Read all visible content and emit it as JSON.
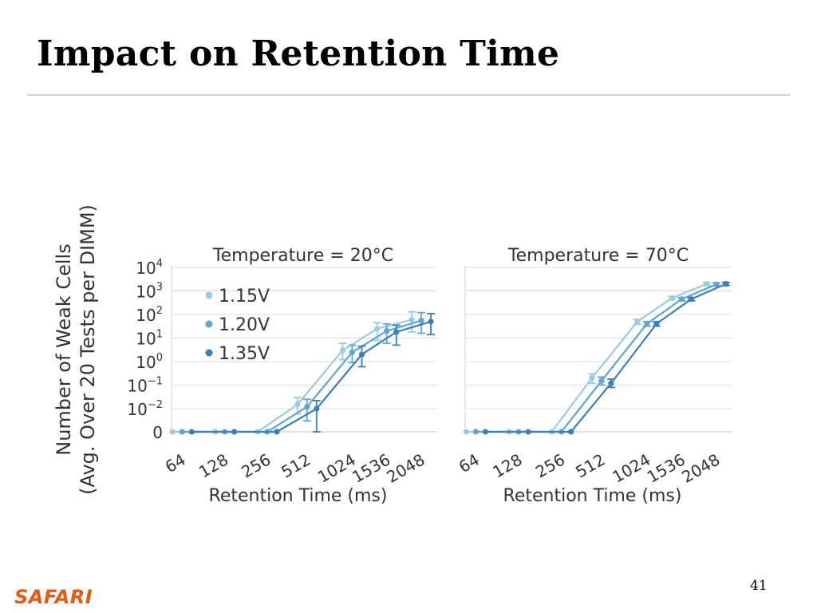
{
  "slide": {
    "title": "Impact on Retention Time",
    "page_number": "41",
    "logo_text": "SAFARI"
  },
  "colors": {
    "1.15V": "#9ecae1",
    "1.20V": "#5fa6cf",
    "1.35V": "#3a7fba",
    "grid": "#dcdcdc",
    "text": "#333333"
  },
  "chart_data": [
    {
      "type": "line",
      "title": "Temperature = 20°C",
      "xlabel": "Retention Time (ms)",
      "ylabel_lines": [
        "Number of Weak Cells",
        "(Avg. Over 20 Tests per DIMM)"
      ],
      "categories": [
        "64",
        "128",
        "256",
        "512",
        "1024",
        "1536",
        "2048"
      ],
      "y_scale": "log-with-zero",
      "y_ticks": [
        "0",
        "10^-2",
        "10^-1",
        "10^0",
        "10^1",
        "10^2",
        "10^3",
        "10^4"
      ],
      "legend": "top-left",
      "grid": true,
      "series": [
        {
          "name": "1.15V",
          "values": [
            0,
            0,
            0,
            0.015,
            3,
            25,
            60
          ],
          "err_low": [
            0,
            0,
            0,
            0.006,
            1.2,
            8,
            18
          ],
          "err_high": [
            0,
            0,
            0,
            0.03,
            6,
            45,
            130
          ]
        },
        {
          "name": "1.20V",
          "values": [
            0,
            0,
            0,
            0.012,
            2.5,
            20,
            55
          ],
          "err_low": [
            0,
            0,
            0,
            0.003,
            0.9,
            6,
            16
          ],
          "err_high": [
            0,
            0,
            0,
            0.025,
            5,
            40,
            120
          ]
        },
        {
          "name": "1.35V",
          "values": [
            0,
            0,
            0,
            0.01,
            2,
            18,
            50
          ],
          "err_low": [
            0,
            0,
            0,
            0,
            0.6,
            5,
            14
          ],
          "err_high": [
            0,
            0,
            0,
            0.022,
            4.5,
            35,
            110
          ]
        }
      ]
    },
    {
      "type": "line",
      "title": "Temperature = 70°C",
      "xlabel": "Retention Time (ms)",
      "categories": [
        "64",
        "128",
        "256",
        "512",
        "1024",
        "1536",
        "2048"
      ],
      "y_scale": "log-with-zero",
      "y_ticks": [
        "0",
        "10^-2",
        "10^-1",
        "10^0",
        "10^1",
        "10^2",
        "10^3",
        "10^4"
      ],
      "grid": true,
      "series": [
        {
          "name": "1.15V",
          "values": [
            0,
            0,
            0,
            0.2,
            50,
            500,
            2000
          ],
          "err_low": [
            0,
            0,
            0,
            0.12,
            38,
            420,
            1700
          ],
          "err_high": [
            0,
            0,
            0,
            0.3,
            62,
            580,
            2300
          ]
        },
        {
          "name": "1.20V",
          "values": [
            0,
            0,
            0,
            0.15,
            40,
            450,
            1900
          ],
          "err_low": [
            0,
            0,
            0,
            0.1,
            32,
            380,
            1650
          ],
          "err_high": [
            0,
            0,
            0,
            0.22,
            50,
            520,
            2200
          ]
        },
        {
          "name": "1.35V",
          "values": [
            0,
            0,
            0,
            0.12,
            40,
            450,
            2000
          ],
          "err_low": [
            0,
            0,
            0,
            0.08,
            32,
            380,
            1700
          ],
          "err_high": [
            0,
            0,
            0,
            0.18,
            50,
            520,
            2300
          ]
        }
      ]
    }
  ]
}
